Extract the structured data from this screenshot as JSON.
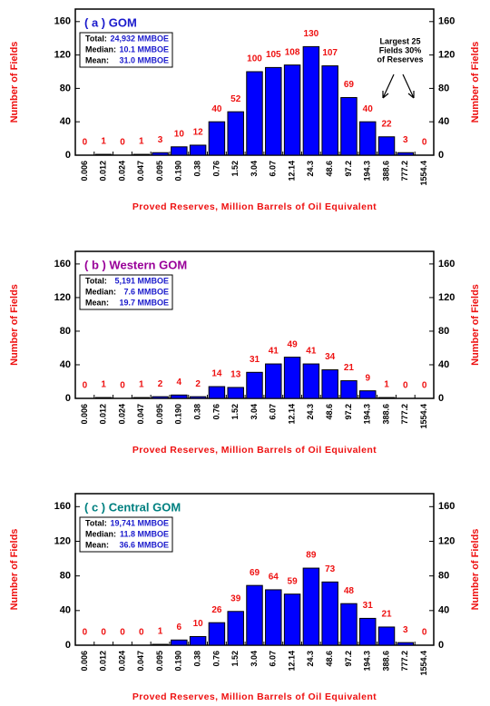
{
  "chart_data": [
    {
      "type": "bar",
      "title": "( a ) GOM",
      "title_color": "#1a1acc",
      "stats": [
        {
          "label": "Total:",
          "value": "24,932 MMBOE"
        },
        {
          "label": "Median:",
          "value": "10.1 MMBOE"
        },
        {
          "label": "Mean:",
          "value": "31.0 MMBOE"
        }
      ],
      "annotation": [
        "Largest 25",
        "Fields 30%",
        "of Reserves"
      ],
      "categories": [
        "0.006",
        "0.012",
        "0.024",
        "0.047",
        "0.095",
        "0.190",
        "0.38",
        "0.76",
        "1.52",
        "3.04",
        "6.07",
        "12.14",
        "24.3",
        "48.6",
        "97.2",
        "194.3",
        "388.6",
        "777.2",
        "1554.4"
      ],
      "values": [
        0,
        1,
        0,
        1,
        3,
        10,
        12,
        40,
        52,
        100,
        105,
        108,
        130,
        107,
        69,
        40,
        22,
        3,
        0
      ],
      "color": "#0000ff",
      "label_color": "#ee1111",
      "ylim": [
        0,
        175
      ],
      "yticks": [
        0,
        40,
        80,
        120,
        160
      ],
      "xlabel": "Proved Reserves, Million Barrels of Oil Equivalent",
      "ylabel": "Number of Fields"
    },
    {
      "type": "bar",
      "title": "( b ) Western GOM",
      "title_color": "#990099",
      "stats": [
        {
          "label": "Total:",
          "value": "5,191 MMBOE"
        },
        {
          "label": "Median:",
          "value": "7.6 MMBOE"
        },
        {
          "label": "Mean:",
          "value": "19.7 MMBOE"
        }
      ],
      "categories": [
        "0.006",
        "0.012",
        "0.024",
        "0.047",
        "0.095",
        "0.190",
        "0.38",
        "0.76",
        "1.52",
        "3.04",
        "6.07",
        "12.14",
        "24.3",
        "48.6",
        "97.2",
        "194.3",
        "388.6",
        "777.2",
        "1554.4"
      ],
      "values": [
        0,
        1,
        0,
        1,
        2,
        4,
        2,
        14,
        13,
        31,
        41,
        49,
        41,
        34,
        21,
        9,
        1,
        0,
        0
      ],
      "color": "#0000ff",
      "label_color": "#ee1111",
      "ylim": [
        0,
        175
      ],
      "yticks": [
        0,
        40,
        80,
        120,
        160
      ],
      "xlabel": "Proved Reserves, Million Barrels of Oil Equivalent",
      "ylabel": "Number of Fields"
    },
    {
      "type": "bar",
      "title": "( c ) Central GOM",
      "title_color": "#008080",
      "stats": [
        {
          "label": "Total:",
          "value": "19,741 MMBOE"
        },
        {
          "label": "Median:",
          "value": "11.8 MMBOE"
        },
        {
          "label": "Mean:",
          "value": "36.6 MMBOE"
        }
      ],
      "categories": [
        "0.006",
        "0.012",
        "0.024",
        "0.047",
        "0.095",
        "0.190",
        "0.38",
        "0.76",
        "1.52",
        "3.04",
        "6.07",
        "12.14",
        "24.3",
        "48.6",
        "97.2",
        "194.3",
        "388.6",
        "777.2",
        "1554.4"
      ],
      "values": [
        0,
        0,
        0,
        0,
        1,
        6,
        10,
        26,
        39,
        69,
        64,
        59,
        89,
        73,
        48,
        31,
        21,
        3,
        0
      ],
      "color": "#0000ff",
      "label_color": "#ee1111",
      "ylim": [
        0,
        175
      ],
      "yticks": [
        0,
        40,
        80,
        120,
        160
      ],
      "xlabel": "Proved Reserves, Million Barrels of Oil Equivalent",
      "ylabel": "Number of Fields"
    }
  ]
}
